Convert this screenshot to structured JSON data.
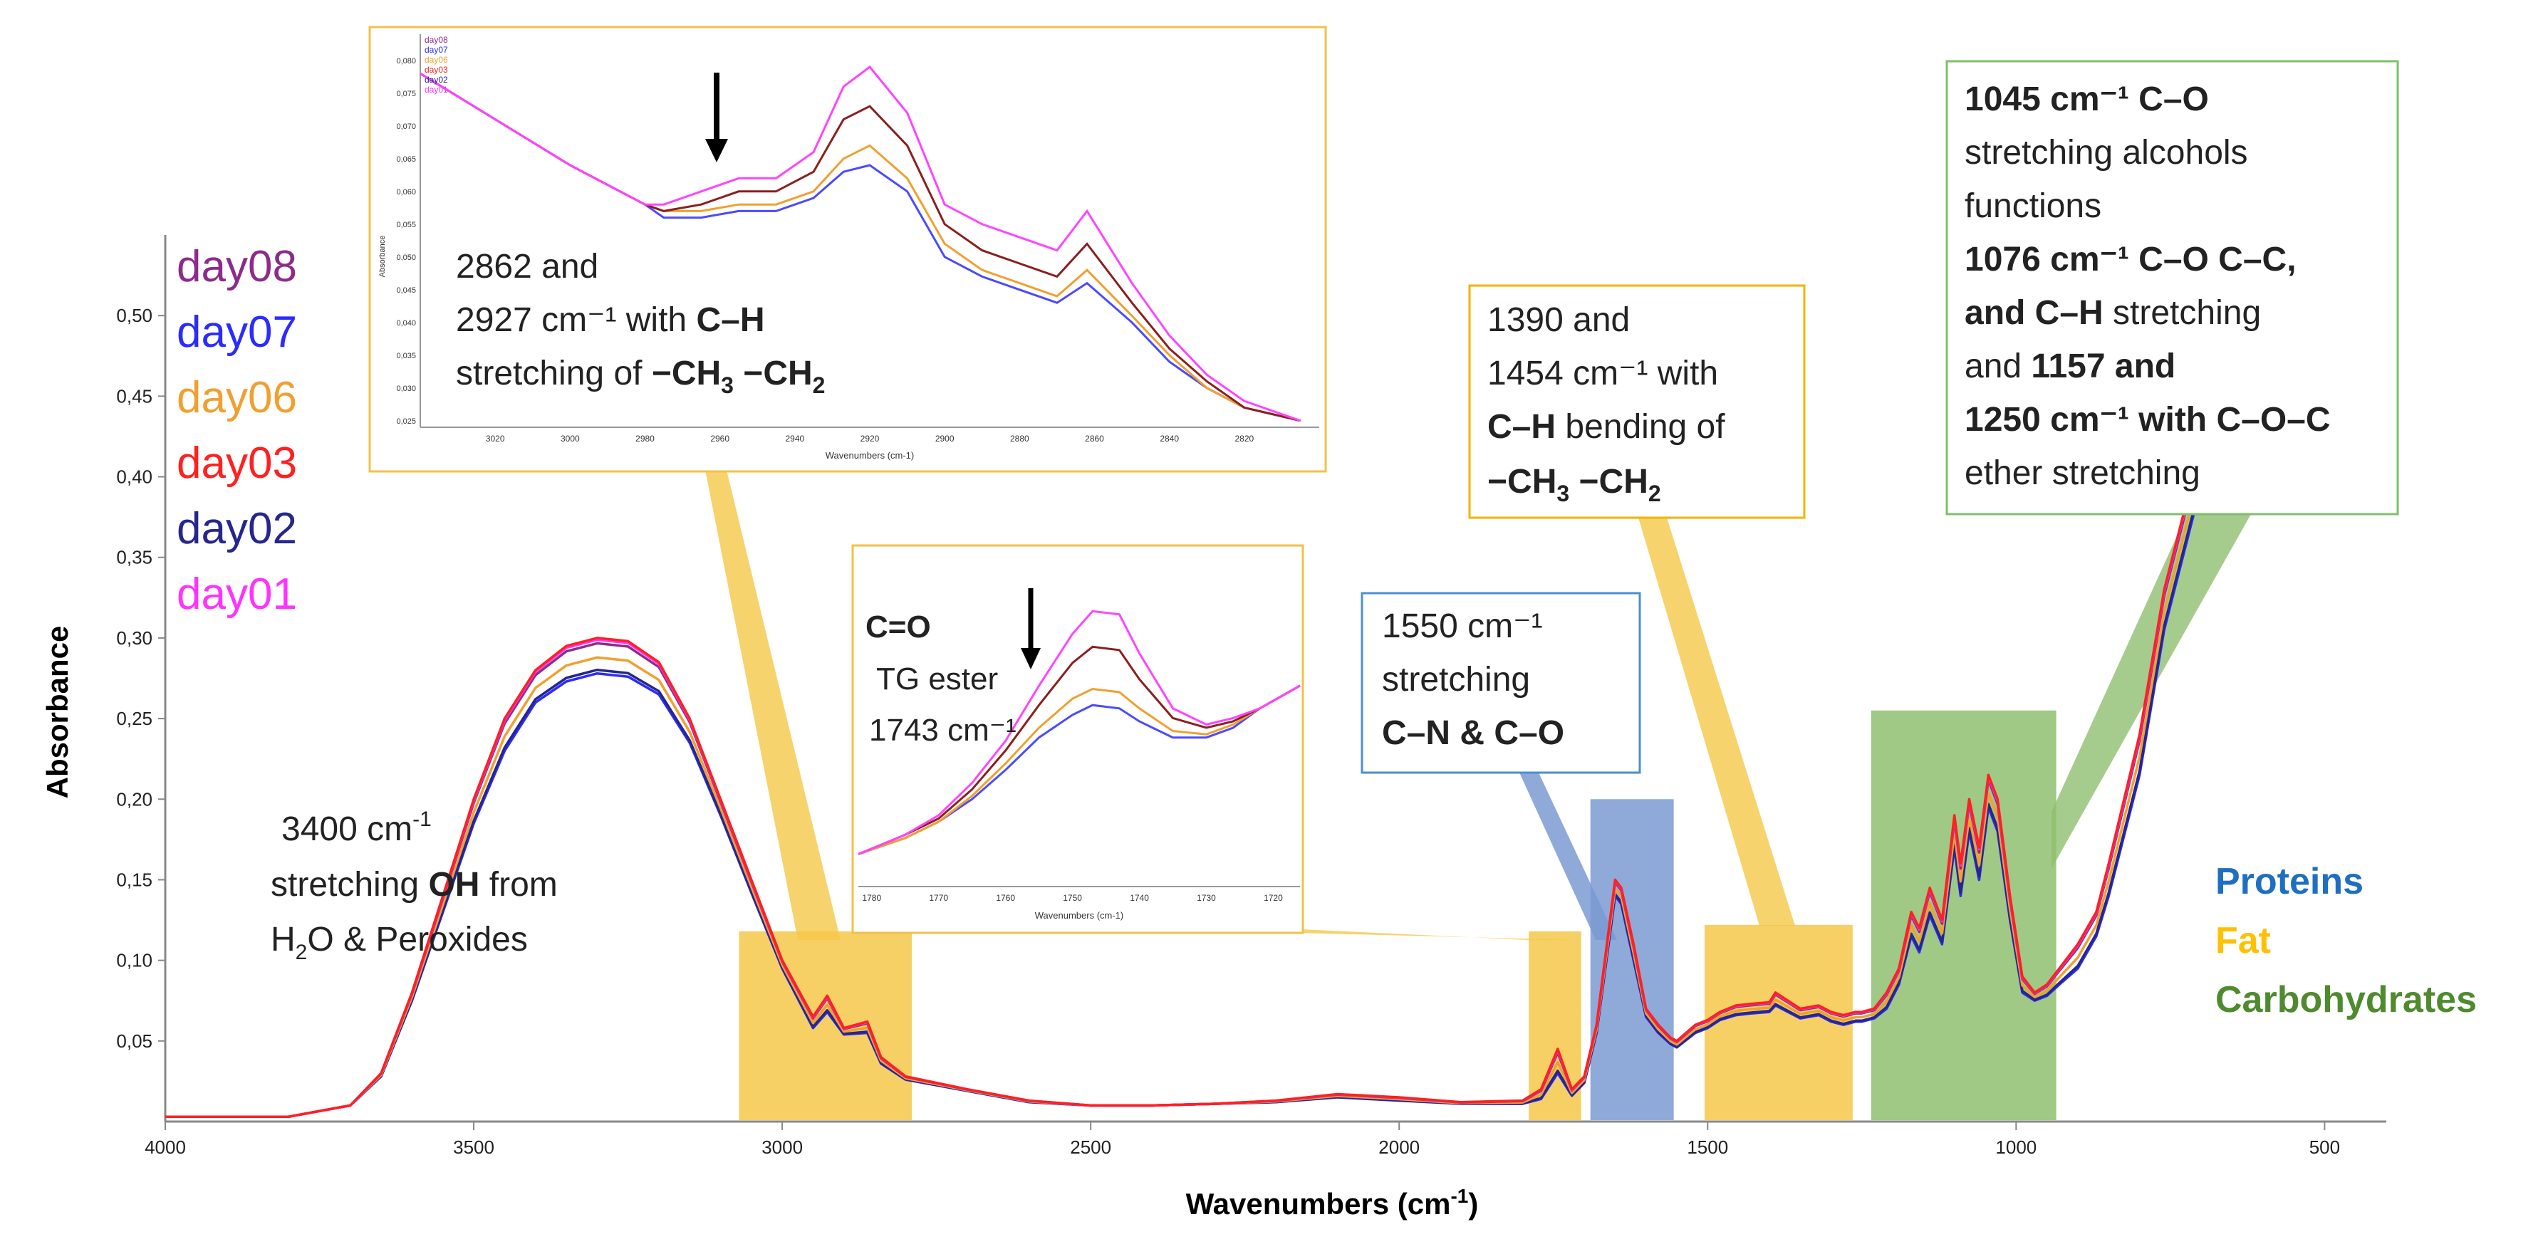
{
  "chart_data": {
    "type": "line",
    "title": "",
    "xlabel": "Wavenumbers (cm-1)",
    "ylabel": "Absorbance",
    "xlim": [
      4000,
      400
    ],
    "x_reversed": true,
    "ylim": [
      0,
      0.55
    ],
    "x_ticks": [
      4000,
      3500,
      3000,
      2500,
      2000,
      1500,
      1000,
      500
    ],
    "y_ticks": [
      0.05,
      0.1,
      0.15,
      0.2,
      0.25,
      0.3,
      0.35,
      0.4,
      0.45,
      0.5
    ],
    "y_tick_labels": [
      "0,05",
      "0,10",
      "0,15",
      "0,20",
      "0,25",
      "0,30",
      "0,35",
      "0,40",
      "0,45",
      "0,50"
    ],
    "legend_placement": "top-left",
    "series": [
      {
        "name": "day08",
        "color": "#8b2c8b"
      },
      {
        "name": "day07",
        "color": "#2b2bff"
      },
      {
        "name": "day06",
        "color": "#f0a030"
      },
      {
        "name": "day03",
        "color": "#ff2020"
      },
      {
        "name": "day02",
        "color": "#26268c"
      },
      {
        "name": "day01",
        "color": "#ff33ff"
      }
    ],
    "x": [
      4000,
      3800,
      3700,
      3650,
      3600,
      3550,
      3500,
      3450,
      3400,
      3350,
      3300,
      3250,
      3200,
      3150,
      3100,
      3050,
      3000,
      2950,
      2927,
      2900,
      2862,
      2840,
      2800,
      2700,
      2600,
      2500,
      2400,
      2300,
      2200,
      2100,
      2000,
      1900,
      1800,
      1770,
      1743,
      1720,
      1700,
      1680,
      1650,
      1640,
      1620,
      1600,
      1580,
      1560,
      1550,
      1520,
      1500,
      1480,
      1454,
      1430,
      1400,
      1390,
      1370,
      1350,
      1320,
      1300,
      1280,
      1260,
      1250,
      1230,
      1210,
      1190,
      1170,
      1157,
      1140,
      1120,
      1100,
      1090,
      1076,
      1060,
      1045,
      1030,
      1010,
      990,
      970,
      950,
      930,
      900,
      870,
      850,
      800,
      760,
      700,
      660
    ],
    "series_values": {
      "upper": [
        0.003,
        0.003,
        0.01,
        0.03,
        0.08,
        0.14,
        0.2,
        0.25,
        0.28,
        0.295,
        0.3,
        0.298,
        0.285,
        0.25,
        0.2,
        0.15,
        0.1,
        0.065,
        0.078,
        0.058,
        0.062,
        0.04,
        0.028,
        0.02,
        0.013,
        0.01,
        0.01,
        0.011,
        0.013,
        0.017,
        0.015,
        0.012,
        0.013,
        0.02,
        0.045,
        0.02,
        0.028,
        0.06,
        0.15,
        0.145,
        0.11,
        0.07,
        0.06,
        0.052,
        0.05,
        0.06,
        0.063,
        0.068,
        0.072,
        0.073,
        0.074,
        0.08,
        0.075,
        0.07,
        0.072,
        0.068,
        0.066,
        0.068,
        0.068,
        0.07,
        0.08,
        0.095,
        0.13,
        0.12,
        0.145,
        0.125,
        0.19,
        0.16,
        0.2,
        0.17,
        0.215,
        0.2,
        0.14,
        0.09,
        0.08,
        0.085,
        0.095,
        0.11,
        0.13,
        0.16,
        0.24,
        0.33,
        0.42,
        0.5
      ],
      "lower": [
        0.003,
        0.003,
        0.01,
        0.028,
        0.075,
        0.13,
        0.185,
        0.23,
        0.26,
        0.273,
        0.278,
        0.276,
        0.265,
        0.235,
        0.19,
        0.142,
        0.095,
        0.058,
        0.068,
        0.054,
        0.055,
        0.036,
        0.026,
        0.019,
        0.012,
        0.01,
        0.01,
        0.011,
        0.012,
        0.015,
        0.013,
        0.011,
        0.011,
        0.014,
        0.03,
        0.016,
        0.024,
        0.055,
        0.14,
        0.135,
        0.1,
        0.065,
        0.055,
        0.048,
        0.046,
        0.055,
        0.058,
        0.063,
        0.066,
        0.067,
        0.068,
        0.072,
        0.068,
        0.064,
        0.066,
        0.062,
        0.06,
        0.062,
        0.062,
        0.064,
        0.07,
        0.085,
        0.115,
        0.105,
        0.128,
        0.11,
        0.17,
        0.14,
        0.18,
        0.15,
        0.195,
        0.18,
        0.125,
        0.08,
        0.075,
        0.078,
        0.085,
        0.095,
        0.115,
        0.14,
        0.215,
        0.305,
        0.395,
        0.48
      ]
    },
    "regions": [
      {
        "label": "Fat",
        "x_from": 3070,
        "x_to": 2790,
        "y_top": 0.118,
        "color": "#f5c84a"
      },
      {
        "label": "Fat",
        "x_from": 1790,
        "x_to": 1705,
        "y_top": 0.118,
        "color": "#f5c84a"
      },
      {
        "label": "Proteins",
        "x_from": 1690,
        "x_to": 1555,
        "y_top": 0.2,
        "color": "#7b9ad2"
      },
      {
        "label": "Fat",
        "x_from": 1505,
        "x_to": 1265,
        "y_top": 0.122,
        "color": "#f5c84a"
      },
      {
        "label": "Carbohydrates",
        "x_from": 1235,
        "x_to": 935,
        "y_top": 0.255,
        "color": "#8ebf6f"
      }
    ]
  },
  "category_legend": [
    {
      "label": "Proteins",
      "color": "#1f6fc0"
    },
    {
      "label": "Fat",
      "color": "#ffc000"
    },
    {
      "label": "Carbohydrates",
      "color": "#4f8a2e"
    }
  ],
  "annotation_main": {
    "line1a": "3400 cm",
    "line1sup": "-1",
    "line2a": "stretching ",
    "line2b": "OH",
    "line2c": " from",
    "line3a": "H",
    "line3sub": "2",
    "line3b": "O & Peroxides"
  },
  "annotation_1550": {
    "l1": "1550 cm⁻¹",
    "l2": "stretching",
    "l3": "C–N & C–O"
  },
  "annotation_1390": {
    "l1": "1390 and",
    "l2": "1454 cm⁻¹ with",
    "l3a": "C–H",
    "l3b": " bending of",
    "l4": "−CH",
    "l4sub": "3",
    "l4b": " −CH",
    "l4sub2": "2"
  },
  "annotation_1045": {
    "l1a": "1045 cm⁻¹",
    "l1b": "  C–O",
    "l2": "stretching alcohols",
    "l3": "functions",
    "l4a": "1076 cm⁻¹",
    "l4b": "  C–O C–C,",
    "l5a": "and C–H",
    "l5b": " stretching",
    "l6a": "and ",
    "l6b": "1157 and",
    "l7a": "1250 cm⁻¹ with C–O–C",
    "l8": "ether stretching"
  },
  "inset1": {
    "xlabel": "Wavenumbers (cm-1)",
    "ylabel": "Absorbance",
    "xlim": [
      3040,
      2800
    ],
    "ylim": [
      0.024,
      0.084
    ],
    "x_ticks": [
      3020,
      3000,
      2980,
      2960,
      2940,
      2920,
      2900,
      2880,
      2860,
      2840,
      2820
    ],
    "y_ticks": [
      0.025,
      0.03,
      0.035,
      0.04,
      0.045,
      0.05,
      0.055,
      0.06,
      0.065,
      0.07,
      0.075,
      0.08
    ],
    "y_tick_labels": [
      "0,025",
      "0,030",
      "0,035",
      "0,040",
      "0,045",
      "0,050",
      "0,055",
      "0,060",
      "0,065",
      "0,070",
      "0,075",
      "0,080"
    ],
    "legend": [
      "day08",
      "day07",
      "day06",
      "day03",
      "day02",
      "day01"
    ],
    "text_l1": "2862 and",
    "text_l2a": "2927 cm⁻¹ with ",
    "text_l2b": "C–H",
    "text_l3a": "stretching of ",
    "text_l3b": "−CH",
    "text_l3s1": "3",
    "text_l3c": " −CH",
    "text_l3s2": "2",
    "x": [
      3040,
      3020,
      3000,
      2980,
      2975,
      2965,
      2955,
      2945,
      2935,
      2927,
      2920,
      2910,
      2900,
      2890,
      2880,
      2870,
      2862,
      2850,
      2840,
      2830,
      2820,
      2805
    ],
    "s_day01": [
      0.078,
      0.071,
      0.064,
      0.058,
      0.058,
      0.06,
      0.062,
      0.062,
      0.066,
      0.076,
      0.079,
      0.072,
      0.058,
      0.055,
      0.053,
      0.051,
      0.057,
      0.046,
      0.038,
      0.032,
      0.028,
      0.025
    ],
    "s_day03": [
      0.078,
      0.071,
      0.064,
      0.058,
      0.057,
      0.058,
      0.06,
      0.06,
      0.063,
      0.071,
      0.073,
      0.067,
      0.055,
      0.051,
      0.049,
      0.047,
      0.052,
      0.043,
      0.036,
      0.031,
      0.027,
      0.025
    ],
    "s_day06": [
      0.078,
      0.071,
      0.064,
      0.058,
      0.057,
      0.057,
      0.058,
      0.058,
      0.06,
      0.065,
      0.067,
      0.062,
      0.052,
      0.048,
      0.046,
      0.044,
      0.048,
      0.041,
      0.035,
      0.03,
      0.027,
      0.025
    ],
    "s_day07": [
      0.078,
      0.071,
      0.064,
      0.058,
      0.056,
      0.056,
      0.057,
      0.057,
      0.059,
      0.063,
      0.064,
      0.06,
      0.05,
      0.047,
      0.045,
      0.043,
      0.046,
      0.04,
      0.034,
      0.03,
      0.027,
      0.025
    ]
  },
  "inset2": {
    "xlabel": "Wavenumbers (cm-1)",
    "xlim": [
      1782,
      1716
    ],
    "x_ticks": [
      1780,
      1770,
      1760,
      1750,
      1740,
      1730,
      1720
    ],
    "t1": "C=O",
    "t2": "TG ester",
    "t3": "1743 cm⁻¹",
    "x": [
      1782,
      1775,
      1770,
      1765,
      1760,
      1755,
      1750,
      1747,
      1743,
      1740,
      1735,
      1730,
      1726,
      1722,
      1716
    ],
    "s_day01": [
      0.1,
      0.16,
      0.22,
      0.32,
      0.45,
      0.62,
      0.78,
      0.85,
      0.84,
      0.72,
      0.55,
      0.5,
      0.52,
      0.55,
      0.62
    ],
    "s_day03": [
      0.1,
      0.16,
      0.21,
      0.3,
      0.42,
      0.56,
      0.69,
      0.74,
      0.73,
      0.64,
      0.52,
      0.49,
      0.51,
      0.55,
      0.62
    ],
    "s_day06": [
      0.1,
      0.15,
      0.2,
      0.28,
      0.38,
      0.49,
      0.58,
      0.61,
      0.6,
      0.55,
      0.48,
      0.47,
      0.5,
      0.55,
      0.62
    ],
    "s_day07": [
      0.1,
      0.15,
      0.2,
      0.27,
      0.36,
      0.46,
      0.53,
      0.56,
      0.55,
      0.51,
      0.46,
      0.46,
      0.49,
      0.55,
      0.62
    ]
  }
}
